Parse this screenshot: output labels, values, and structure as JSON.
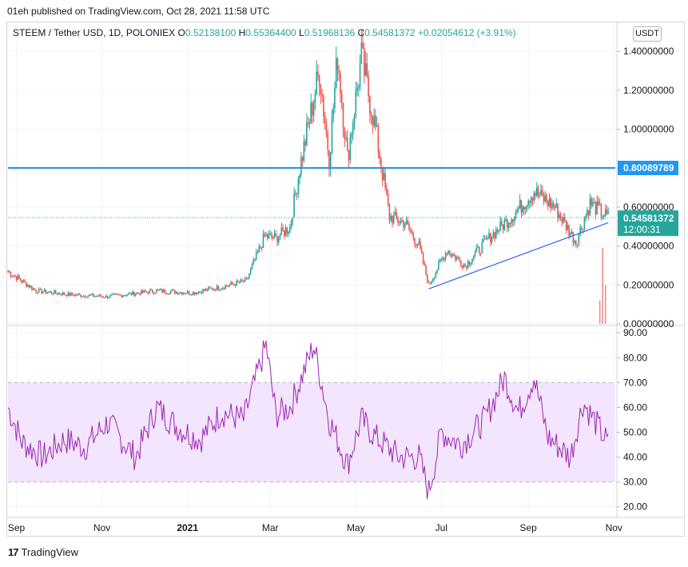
{
  "header": {
    "published": "01eh published on TradingView.com, Oct 28, 2021 11:58 UTC"
  },
  "legend": {
    "symbol": "STEEM / Tether USD, 1D, POLONIEX",
    "o_label": "O",
    "o_value": "0.52138100",
    "h_label": "H",
    "h_value": "0.55364400",
    "l_label": "L",
    "l_value": "0.51968136",
    "c_label": "C",
    "c_value": "0.54581372",
    "change": "+0.02054612 (+3.91%)"
  },
  "currency_button": "USDT",
  "footer": {
    "brand": "TradingView",
    "logo_text": "17"
  },
  "colors": {
    "up": "#26a69a",
    "down": "#ef5350",
    "hline": "#2196f3",
    "trend": "#2962ff",
    "rsi_line": "#9c27b0",
    "rsi_band": "#f3e5fd",
    "price_tag": "#26a69a"
  },
  "chart_data": [
    {
      "type": "candlestick",
      "title": "STEEM / Tether USD, 1D, POLONIEX",
      "y_ticks": [
        "1.40000000",
        "1.20000000",
        "1.00000000",
        "0.80000000",
        "0.60000000",
        "0.40000000",
        "0.20000000",
        "0.00000000"
      ],
      "y_tick_values": [
        1.4,
        1.2,
        1.0,
        0.8,
        0.6,
        0.4,
        0.2,
        0.0
      ],
      "ylim": [
        0,
        1.45
      ],
      "x_ticks": [
        "Sep",
        "Nov",
        "2021",
        "Mar",
        "May",
        "Jul",
        "Sep",
        "Nov"
      ],
      "x_tick_dates": [
        "2020-09-01",
        "2020-11-01",
        "2021-01-01",
        "2021-03-01",
        "2021-05-01",
        "2021-07-01",
        "2021-09-01",
        "2021-11-01"
      ],
      "date_range": [
        "2020-08-26",
        "2021-11-02"
      ],
      "current_price_label": "0.54581372",
      "countdown_label": "12:00:31",
      "current_price": 0.54581372,
      "horizontal_line": {
        "value": 0.80089789,
        "label": "0.80089789"
      },
      "trend_line": {
        "from": [
          "2021-06-22",
          0.18
        ],
        "to": [
          "2021-10-28",
          0.52
        ]
      },
      "price_anchors": [
        [
          "2020-08-26",
          0.27
        ],
        [
          "2020-09-15",
          0.17
        ],
        [
          "2020-10-10",
          0.15
        ],
        [
          "2020-11-05",
          0.14
        ],
        [
          "2020-12-10",
          0.17
        ],
        [
          "2021-01-05",
          0.16
        ],
        [
          "2021-01-25",
          0.19
        ],
        [
          "2021-02-12",
          0.22
        ],
        [
          "2021-02-25",
          0.45
        ],
        [
          "2021-03-05",
          0.44
        ],
        [
          "2021-03-15",
          0.5
        ],
        [
          "2021-03-22",
          0.8
        ],
        [
          "2021-04-05",
          1.3
        ],
        [
          "2021-04-12",
          0.85
        ],
        [
          "2021-04-18",
          1.38
        ],
        [
          "2021-04-25",
          0.85
        ],
        [
          "2021-05-05",
          1.37
        ],
        [
          "2021-05-15",
          1.0
        ],
        [
          "2021-05-25",
          0.55
        ],
        [
          "2021-06-05",
          0.52
        ],
        [
          "2021-06-15",
          0.4
        ],
        [
          "2021-06-22",
          0.2
        ],
        [
          "2021-07-05",
          0.38
        ],
        [
          "2021-07-18",
          0.3
        ],
        [
          "2021-08-05",
          0.45
        ],
        [
          "2021-08-20",
          0.55
        ],
        [
          "2021-09-05",
          0.68
        ],
        [
          "2021-09-20",
          0.6
        ],
        [
          "2021-10-05",
          0.42
        ],
        [
          "2021-10-15",
          0.62
        ],
        [
          "2021-10-28",
          0.546
        ]
      ],
      "volume_spikes": [
        [
          "2021-10-24",
          0.39
        ],
        [
          "2021-10-26",
          0.2
        ],
        [
          "2021-10-22",
          0.12
        ]
      ]
    },
    {
      "type": "line",
      "title": "RSI",
      "y_ticks": [
        "90.00",
        "80.00",
        "70.00",
        "60.00",
        "50.00",
        "40.00",
        "30.00",
        "20.00"
      ],
      "y_tick_values": [
        90,
        80,
        70,
        60,
        50,
        40,
        30,
        20
      ],
      "ylim": [
        17,
        92
      ],
      "band": [
        30,
        70
      ],
      "rsi_anchors": [
        [
          "2020-08-26",
          60
        ],
        [
          "2020-09-05",
          46
        ],
        [
          "2020-09-20",
          40
        ],
        [
          "2020-10-05",
          47
        ],
        [
          "2020-10-20",
          44
        ],
        [
          "2020-11-05",
          54
        ],
        [
          "2020-11-25",
          40
        ],
        [
          "2020-12-10",
          60
        ],
        [
          "2020-12-25",
          52
        ],
        [
          "2021-01-10",
          47
        ],
        [
          "2021-01-25",
          58
        ],
        [
          "2021-02-10",
          55
        ],
        [
          "2021-02-18",
          70
        ],
        [
          "2021-02-26",
          85
        ],
        [
          "2021-03-05",
          57
        ],
        [
          "2021-03-15",
          60
        ],
        [
          "2021-03-22",
          70
        ],
        [
          "2021-04-01",
          85
        ],
        [
          "2021-04-12",
          55
        ],
        [
          "2021-04-25",
          37
        ],
        [
          "2021-05-05",
          55
        ],
        [
          "2021-05-15",
          48
        ],
        [
          "2021-06-01",
          40
        ],
        [
          "2021-06-15",
          40
        ],
        [
          "2021-06-22",
          26
        ],
        [
          "2021-07-01",
          50
        ],
        [
          "2021-07-15",
          45
        ],
        [
          "2021-08-01",
          55
        ],
        [
          "2021-08-15",
          72
        ],
        [
          "2021-08-25",
          58
        ],
        [
          "2021-09-05",
          72
        ],
        [
          "2021-09-15",
          48
        ],
        [
          "2021-10-01",
          40
        ],
        [
          "2021-10-10",
          62
        ],
        [
          "2021-10-20",
          53
        ],
        [
          "2021-10-28",
          45
        ]
      ]
    }
  ]
}
